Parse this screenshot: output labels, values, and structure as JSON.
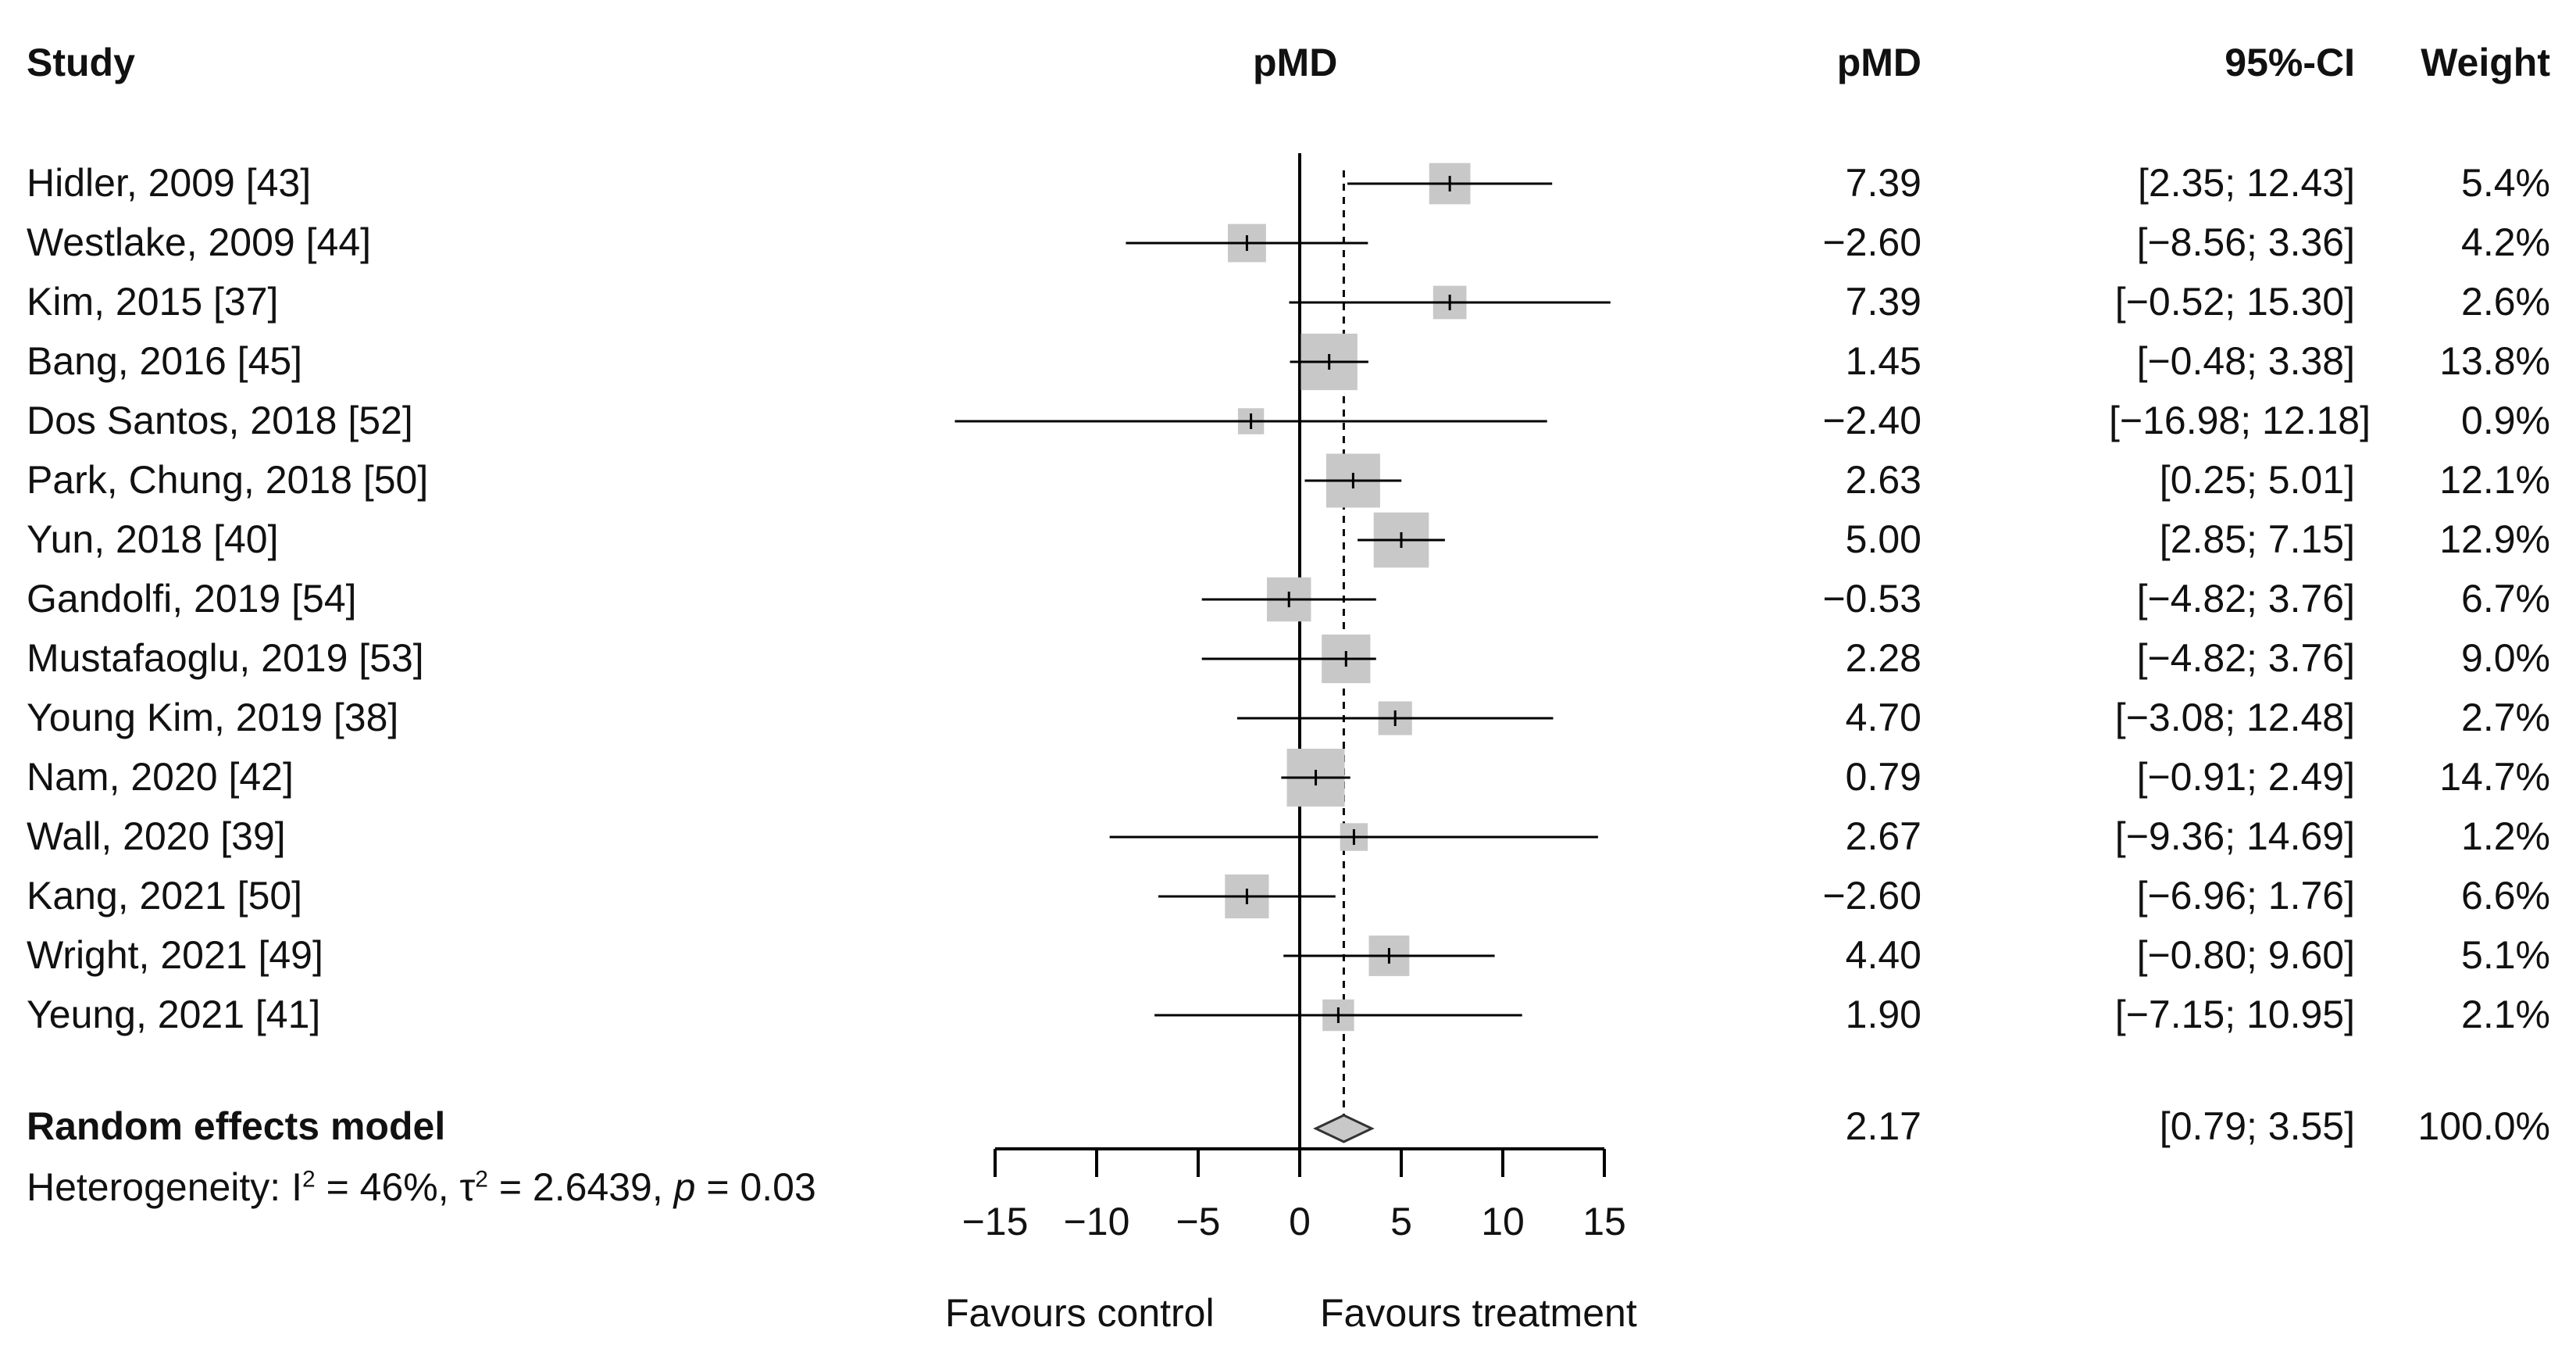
{
  "chart_data": {
    "type": "forest",
    "headers": {
      "study": "Study",
      "plot": "pMD",
      "effect": "pMD",
      "ci": "95%-CI",
      "weight": "Weight"
    },
    "studies": [
      {
        "study": "Hidler, 2009 [43]",
        "est": 7.39,
        "lo": 2.35,
        "hi": 12.43,
        "weight": 5.4,
        "effect_text": "7.39",
        "ci_text": "[2.35; 12.43]",
        "weight_text": "5.4%"
      },
      {
        "study": "Westlake, 2009 [44]",
        "est": -2.6,
        "lo": -8.56,
        "hi": 3.36,
        "weight": 4.2,
        "effect_text": "−2.60",
        "ci_text": "[−8.56; 3.36]",
        "weight_text": "4.2%"
      },
      {
        "study": "Kim, 2015 [37]",
        "est": 7.39,
        "lo": -0.52,
        "hi": 15.3,
        "weight": 2.6,
        "effect_text": "7.39",
        "ci_text": "[−0.52; 15.30]",
        "weight_text": "2.6%"
      },
      {
        "study": "Bang, 2016 [45]",
        "est": 1.45,
        "lo": -0.48,
        "hi": 3.38,
        "weight": 13.8,
        "effect_text": "1.45",
        "ci_text": "[−0.48; 3.38]",
        "weight_text": "13.8%"
      },
      {
        "study": "Dos Santos, 2018 [52]",
        "est": -2.4,
        "lo": -16.98,
        "hi": 12.18,
        "weight": 0.9,
        "effect_text": "−2.40",
        "ci_text": "[−16.98; 12.18]",
        "weight_text": "0.9%"
      },
      {
        "study": "Park, Chung, 2018 [50]",
        "est": 2.63,
        "lo": 0.25,
        "hi": 5.01,
        "weight": 12.1,
        "effect_text": "2.63",
        "ci_text": "[0.25; 5.01]",
        "weight_text": "12.1%"
      },
      {
        "study": "Yun, 2018 [40]",
        "est": 5.0,
        "lo": 2.85,
        "hi": 7.15,
        "weight": 12.9,
        "effect_text": "5.00",
        "ci_text": "[2.85; 7.15]",
        "weight_text": "12.9%"
      },
      {
        "study": "Gandolfi, 2019 [54]",
        "est": -0.53,
        "lo": -4.82,
        "hi": 3.76,
        "weight": 6.7,
        "effect_text": "−0.53",
        "ci_text": "[−4.82; 3.76]",
        "weight_text": "6.7%"
      },
      {
        "study": "Mustafaoglu, 2019 [53]",
        "est": 2.28,
        "lo": -4.82,
        "hi": 3.76,
        "weight": 9.0,
        "effect_text": "2.28",
        "ci_text": "[−4.82; 3.76]",
        "weight_text": "9.0%"
      },
      {
        "study": "Young Kim, 2019 [38]",
        "est": 4.7,
        "lo": -3.08,
        "hi": 12.48,
        "weight": 2.7,
        "effect_text": "4.70",
        "ci_text": "[−3.08; 12.48]",
        "weight_text": "2.7%"
      },
      {
        "study": "Nam, 2020 [42]",
        "est": 0.79,
        "lo": -0.91,
        "hi": 2.49,
        "weight": 14.7,
        "effect_text": "0.79",
        "ci_text": "[−0.91; 2.49]",
        "weight_text": "14.7%"
      },
      {
        "study": "Wall, 2020 [39]",
        "est": 2.67,
        "lo": -9.36,
        "hi": 14.69,
        "weight": 1.2,
        "effect_text": "2.67",
        "ci_text": "[−9.36; 14.69]",
        "weight_text": "1.2%"
      },
      {
        "study": "Kang, 2021 [50]",
        "est": -2.6,
        "lo": -6.96,
        "hi": 1.76,
        "weight": 6.6,
        "effect_text": "−2.60",
        "ci_text": "[−6.96; 1.76]",
        "weight_text": "6.6%"
      },
      {
        "study": "Wright, 2021 [49]",
        "est": 4.4,
        "lo": -0.8,
        "hi": 9.6,
        "weight": 5.1,
        "effect_text": "4.40",
        "ci_text": "[−0.80; 9.60]",
        "weight_text": "5.1%"
      },
      {
        "study": "Yeung, 2021 [41]",
        "est": 1.9,
        "lo": -7.15,
        "hi": 10.95,
        "weight": 2.1,
        "effect_text": "1.90",
        "ci_text": "[−7.15; 10.95]",
        "weight_text": "2.1%"
      }
    ],
    "pooled": {
      "label": "Random effects model",
      "est": 2.17,
      "lo": 0.79,
      "hi": 3.55,
      "effect_text": "2.17",
      "ci_text": "[0.79; 3.55]",
      "weight_text": "100.0%"
    },
    "heterogeneity": {
      "prefix": "Heterogeneity: I",
      "sup1": "2",
      "mid": " = 46%, τ",
      "sup2": "2",
      "mid2": " =  2.6439, ",
      "p_label": "p",
      "p_value": " = 0.03"
    },
    "x_axis": {
      "range": [
        -15,
        15
      ],
      "ticks": [
        -15,
        -10,
        -5,
        0,
        5,
        10,
        15
      ],
      "tick_labels": [
        "−15",
        "−10",
        "−5",
        "0",
        "5",
        "10",
        "15"
      ]
    },
    "favours": {
      "left": "Favours control",
      "right": "Favours treatment"
    }
  }
}
